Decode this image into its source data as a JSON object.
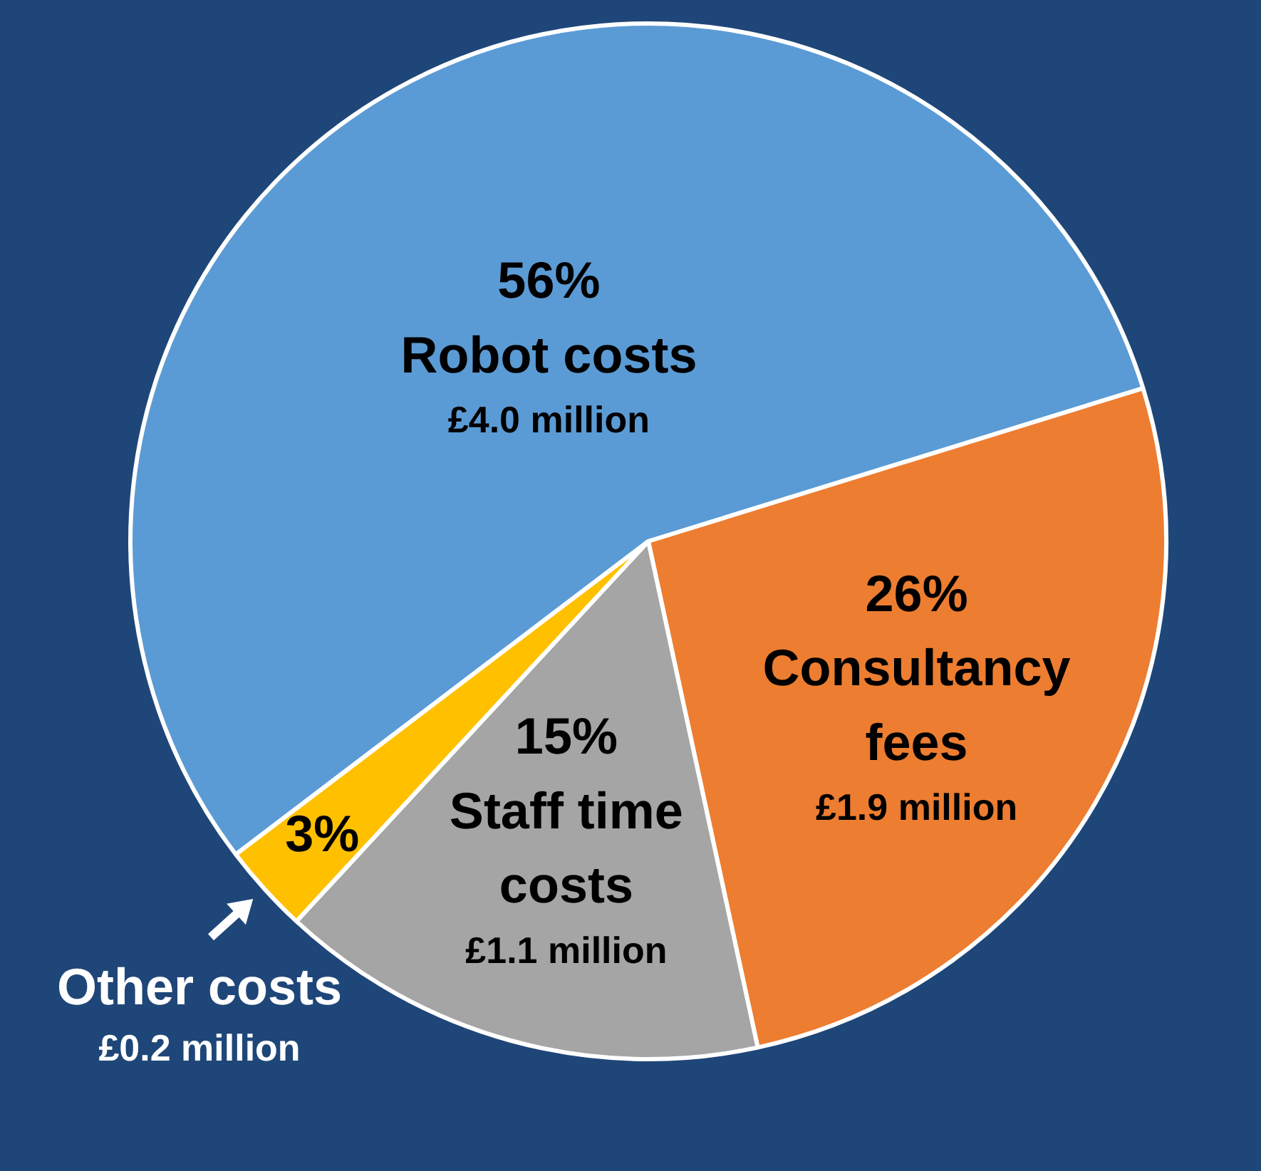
{
  "chart_data": {
    "type": "pie",
    "categories": [
      "Robot costs",
      "Consultancy fees",
      "Staff time costs",
      "Other costs"
    ],
    "values": [
      4.0,
      1.9,
      1.1,
      0.2
    ],
    "value_labels": [
      "£4.0 million",
      "£1.9 million",
      "£1.1 million",
      "£0.2 million"
    ],
    "colors": [
      "#5b9bd5",
      "#ed7d31",
      "#a5a5a5",
      "#ffc000"
    ],
    "annotations": [
      "56%",
      "26%",
      "15%",
      "3%"
    ],
    "legend": false
  }
}
